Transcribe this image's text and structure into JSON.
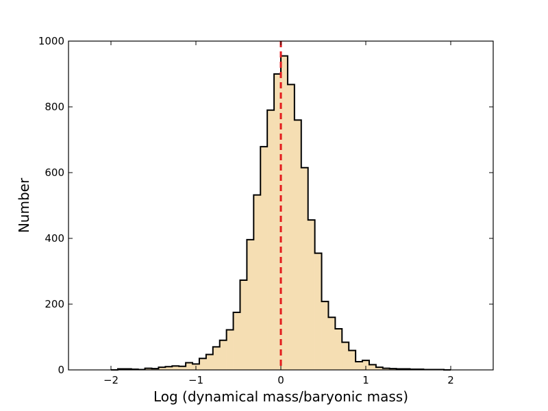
{
  "chart_data": {
    "type": "histogram",
    "xlabel": "Log (dynamical mass/baryonic mass)",
    "ylabel": "Number",
    "xlim": [
      -2.5,
      2.5
    ],
    "ylim": [
      0,
      1000
    ],
    "x_ticks": [
      -2,
      -1,
      0,
      1,
      2
    ],
    "x_tick_labels": [
      "−2",
      "−1",
      "0",
      "1",
      "2"
    ],
    "y_ticks": [
      0,
      200,
      400,
      600,
      800,
      1000
    ],
    "y_tick_labels": [
      "0",
      "200",
      "400",
      "600",
      "800",
      "1000"
    ],
    "bin_start": -2.0,
    "bin_width": 0.08,
    "counts": [
      0,
      3,
      3,
      2,
      1,
      5,
      4,
      8,
      10,
      12,
      11,
      22,
      18,
      35,
      47,
      70,
      90,
      122,
      175,
      273,
      396,
      532,
      679,
      790,
      900,
      955,
      868,
      760,
      615,
      456,
      355,
      208,
      160,
      125,
      84,
      59,
      25,
      29,
      16,
      8,
      5,
      4,
      3,
      3,
      2,
      2,
      1,
      1,
      1,
      0
    ],
    "fill_color": "#f5deb3",
    "edge_color": "#000000",
    "reference_line": {
      "x": 0,
      "color": "#e31a1c",
      "style": "dashed"
    },
    "grid": false
  }
}
